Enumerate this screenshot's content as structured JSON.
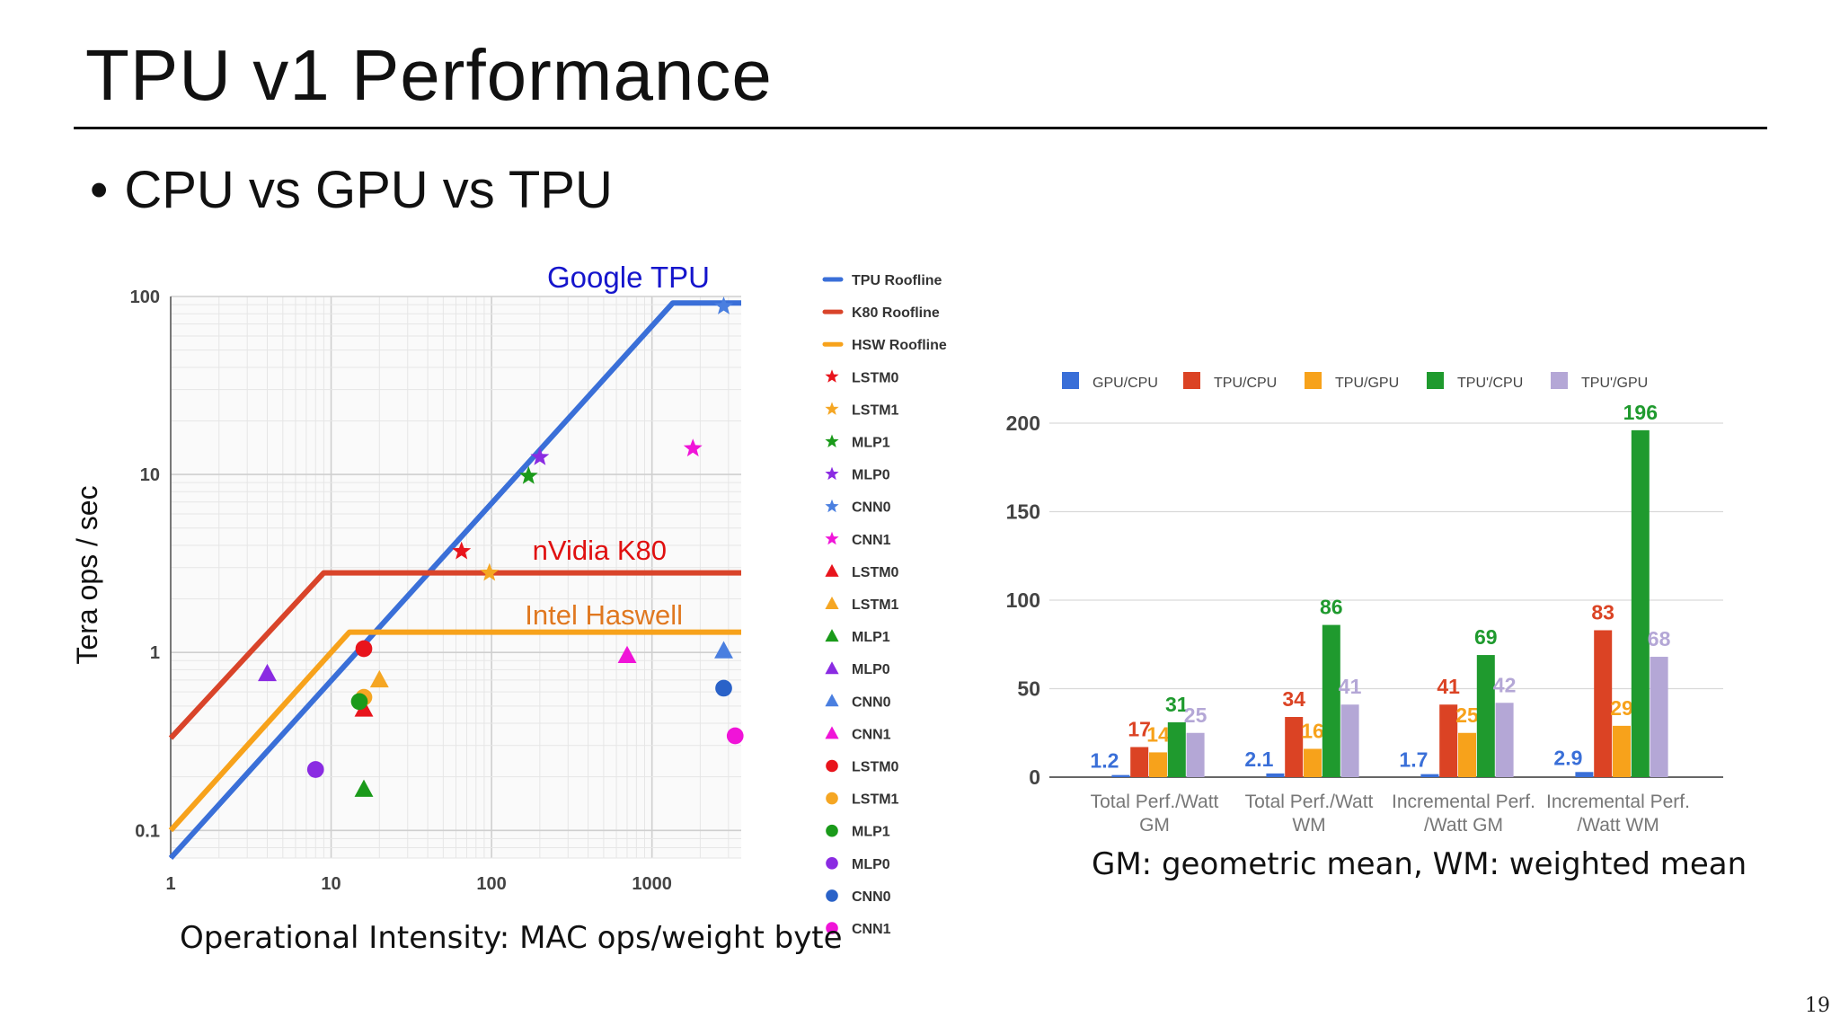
{
  "slide": {
    "title": "TPU v1 Performance",
    "bullet_dot": "•",
    "bullet": "CPU vs GPU vs TPU",
    "page_number": "19",
    "roofline_xcaption": "Operational Intensity: MAC ops/weight byte",
    "bar_note": "GM: geometric mean, WM: weighted mean"
  },
  "chart_data": [
    {
      "type": "scatter",
      "ylabel": "Tera ops / sec",
      "xlabel": "Operational Intensity: MAC ops/weight byte",
      "xscale": "log",
      "yscale": "log",
      "xlim": [
        1,
        3600
      ],
      "ylim": [
        0.07,
        100
      ],
      "xticks": [
        1,
        10,
        100,
        1000
      ],
      "xtick_labels": [
        "1",
        "10",
        "100",
        "1000"
      ],
      "yticks": [
        0.1,
        1,
        10,
        100
      ],
      "ytick_labels": [
        "0.1",
        "1",
        "10",
        "100"
      ],
      "grid": true,
      "legend_position": "right",
      "annotations": [
        {
          "text": "Google TPU",
          "color": "#1515cc"
        },
        {
          "text": "nVidia K80",
          "color": "#e01010"
        },
        {
          "text": "Intel Haswell",
          "color": "#e07820"
        }
      ],
      "rooflines": [
        {
          "name": "TPU Roofline",
          "color": "#3a6fd8",
          "points": [
            [
              1,
              0.07
            ],
            [
              1350,
              92
            ],
            [
              3600,
              92
            ]
          ]
        },
        {
          "name": "K80 Roofline",
          "color": "#d9442a",
          "points": [
            [
              1,
              0.33
            ],
            [
              9,
              2.8
            ],
            [
              3600,
              2.8
            ]
          ]
        },
        {
          "name": "HSW Roofline",
          "color": "#f7a21b",
          "points": [
            [
              1,
              0.1
            ],
            [
              13,
              1.3
            ],
            [
              3600,
              1.3
            ]
          ]
        }
      ],
      "series": [
        {
          "name": "LSTM0",
          "marker": "star",
          "color": "#e8141c",
          "x": 65,
          "y": 3.7
        },
        {
          "name": "LSTM1",
          "marker": "star",
          "color": "#f5a623",
          "x": 97,
          "y": 2.8
        },
        {
          "name": "MLP1",
          "marker": "star",
          "color": "#1a9a1a",
          "x": 170,
          "y": 9.8
        },
        {
          "name": "MLP0",
          "marker": "star",
          "color": "#8a2be2",
          "x": 200,
          "y": 12.5
        },
        {
          "name": "CNN0",
          "marker": "star",
          "color": "#4a7fe0",
          "x": 2800,
          "y": 88
        },
        {
          "name": "CNN1",
          "marker": "star",
          "color": "#f014d8",
          "x": 1800,
          "y": 14
        },
        {
          "name": "LSTM0",
          "marker": "triangle",
          "color": "#e8141c",
          "x": 16,
          "y": 0.48
        },
        {
          "name": "LSTM1",
          "marker": "triangle",
          "color": "#f5a623",
          "x": 20,
          "y": 0.7
        },
        {
          "name": "MLP1",
          "marker": "triangle",
          "color": "#1a9a1a",
          "x": 16,
          "y": 0.17
        },
        {
          "name": "MLP0",
          "marker": "triangle",
          "color": "#8a2be2",
          "x": 4,
          "y": 0.76
        },
        {
          "name": "CNN0",
          "marker": "triangle",
          "color": "#4a7fe0",
          "x": 2800,
          "y": 1.02
        },
        {
          "name": "CNN1",
          "marker": "triangle",
          "color": "#f014d8",
          "x": 700,
          "y": 0.96
        },
        {
          "name": "LSTM0",
          "marker": "circle",
          "color": "#e8141c",
          "x": 16,
          "y": 1.05
        },
        {
          "name": "LSTM1",
          "marker": "circle",
          "color": "#f5a623",
          "x": 16,
          "y": 0.56
        },
        {
          "name": "MLP1",
          "marker": "circle",
          "color": "#1a9a1a",
          "x": 15,
          "y": 0.53
        },
        {
          "name": "MLP0",
          "marker": "circle",
          "color": "#8a2be2",
          "x": 8,
          "y": 0.22
        },
        {
          "name": "CNN0",
          "marker": "circle",
          "color": "#2a62c8",
          "x": 2800,
          "y": 0.63
        },
        {
          "name": "CNN1",
          "marker": "circle",
          "color": "#f014d8",
          "x": 3300,
          "y": 0.34
        }
      ]
    },
    {
      "type": "bar",
      "categories": [
        "Total Perf./Watt\nGM",
        "Total Perf./Watt\nWM",
        "Incremental Perf.\n/Watt GM",
        "Incremental Perf.\n/Watt WM"
      ],
      "ylim": [
        0,
        210
      ],
      "yticks": [
        0,
        50,
        100,
        150,
        200
      ],
      "ytick_labels": [
        "0",
        "50",
        "100",
        "150",
        "200"
      ],
      "grid": true,
      "legend_position": "top",
      "series": [
        {
          "name": "GPU/CPU",
          "color": "#3a6fd8",
          "values": [
            1.2,
            2.1,
            1.7,
            2.9
          ],
          "labels": [
            "1.2",
            "2.1",
            "1.7",
            "2.9"
          ]
        },
        {
          "name": "TPU/CPU",
          "color": "#db4324",
          "values": [
            17,
            34,
            41,
            83
          ],
          "labels": [
            "17",
            "34",
            "41",
            "83"
          ]
        },
        {
          "name": "TPU/GPU",
          "color": "#f7a21b",
          "values": [
            14,
            16,
            25,
            29
          ],
          "labels": [
            "14",
            "16",
            "25",
            "29"
          ]
        },
        {
          "name": "TPU'/CPU",
          "color": "#1f9a2e",
          "values": [
            31,
            86,
            69,
            196
          ],
          "labels": [
            "31",
            "86",
            "69",
            "196"
          ]
        },
        {
          "name": "TPU'/GPU",
          "color": "#b4a7d6",
          "values": [
            25,
            41,
            42,
            68
          ],
          "labels": [
            "25",
            "41",
            "42",
            "68"
          ]
        }
      ]
    }
  ]
}
